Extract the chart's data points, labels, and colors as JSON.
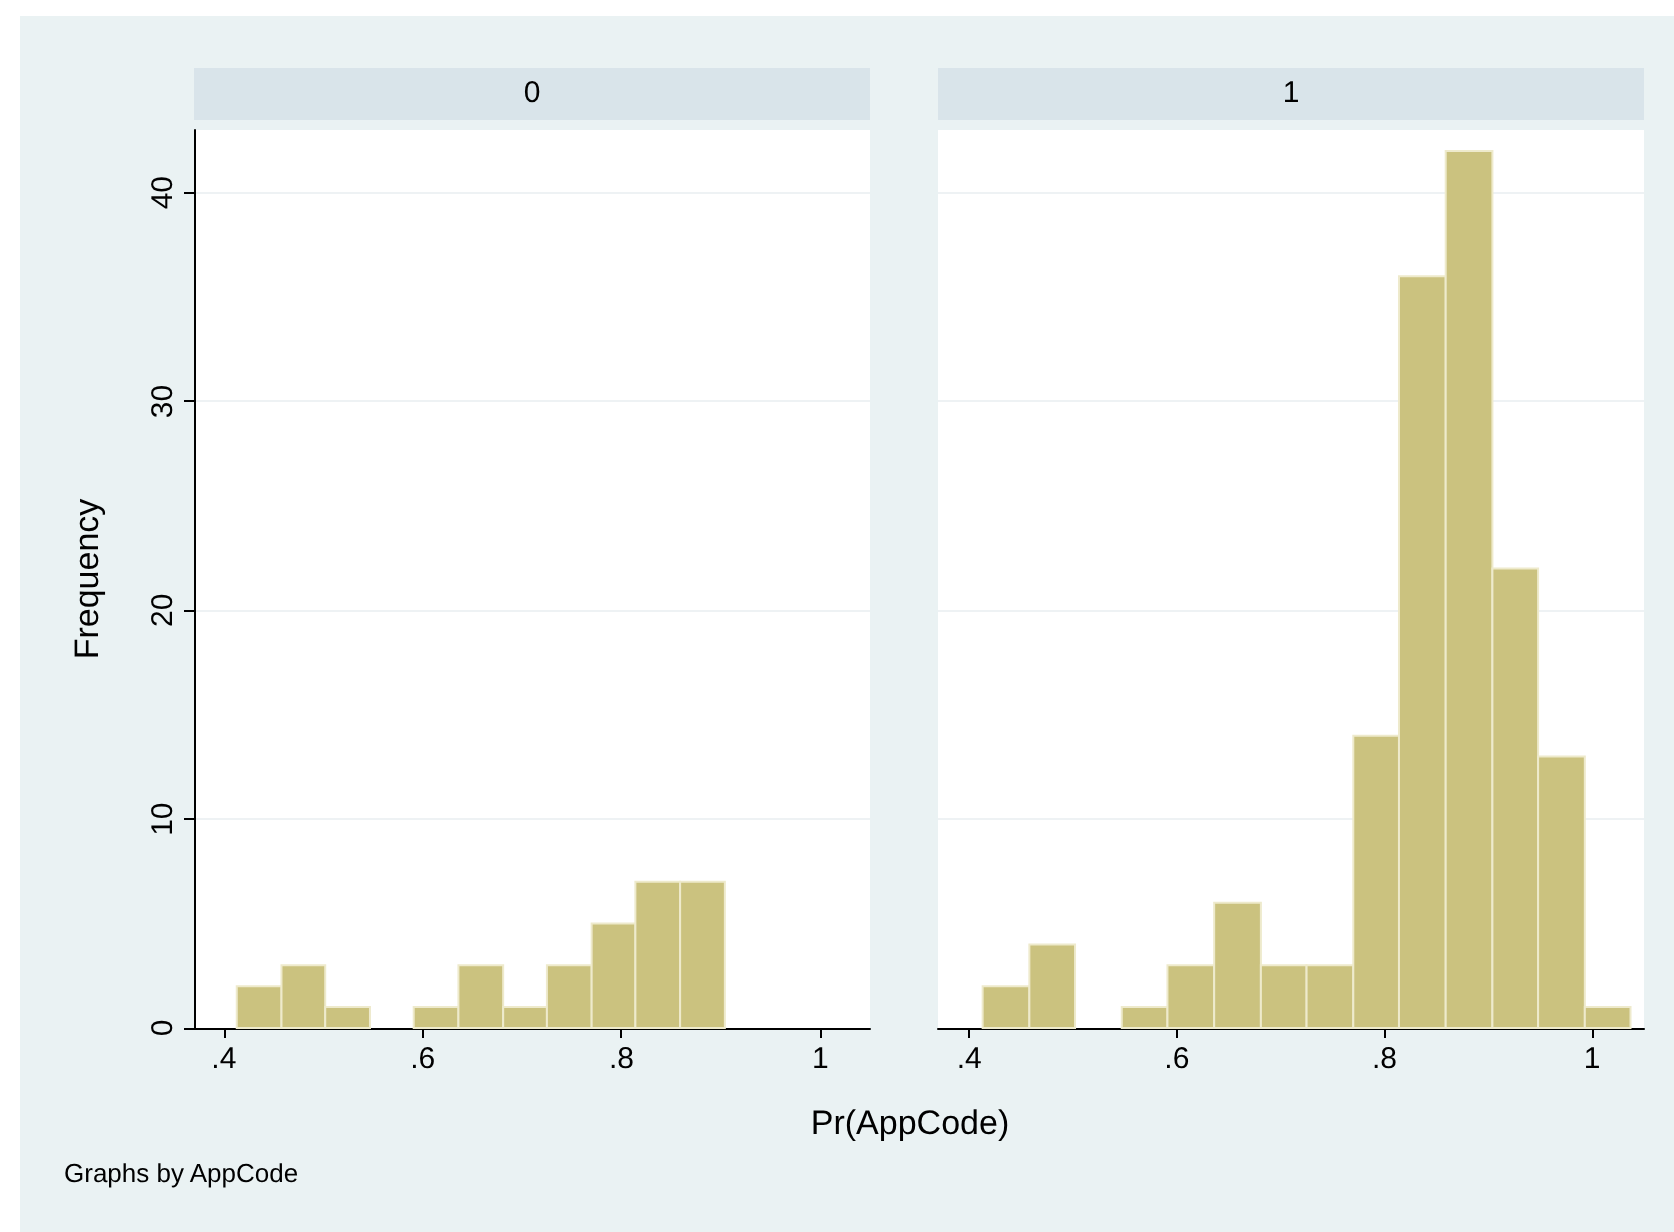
{
  "chart_data": [
    {
      "type": "histogram",
      "title": "0",
      "ylabel": "Frequency",
      "annotations": [
        "Graphs by AppCode"
      ],
      "bins": [
        0.413,
        0.458,
        0.502,
        0.547,
        0.591,
        0.636,
        0.681,
        0.725,
        0.77,
        0.814,
        0.859,
        0.904
      ],
      "values": [
        2,
        3,
        1,
        0,
        1,
        3,
        1,
        3,
        5,
        7,
        7
      ],
      "color": "#cbc27f",
      "xlim": [
        0.37,
        1.05
      ],
      "xticks": [
        {
          "value": 0.4,
          "label": ".4"
        },
        {
          "value": 0.6,
          "label": ".6"
        },
        {
          "value": 0.8,
          "label": ".8"
        },
        1
      ],
      "ylim": [
        0,
        43
      ],
      "yticks": [
        0,
        10,
        20,
        30,
        40
      ],
      "grid": "y"
    },
    {
      "type": "histogram",
      "title": "1",
      "xlabel": "Pr(AppCode)",
      "bins": [
        0.413,
        0.458,
        0.502,
        0.547,
        0.591,
        0.636,
        0.681,
        0.725,
        0.77,
        0.814,
        0.859,
        0.904,
        0.948,
        0.993,
        1.037
      ],
      "values": [
        2,
        4,
        0,
        1,
        3,
        6,
        3,
        3,
        14,
        36,
        42,
        22,
        13,
        1
      ],
      "color": "#cbc27f",
      "xlim": [
        0.37,
        1.05
      ],
      "xticks": [
        {
          "value": 0.4,
          "label": ".4"
        },
        {
          "value": 0.6,
          "label": ".6"
        },
        {
          "value": 0.8,
          "label": ".8"
        },
        1
      ],
      "ylim": [
        0,
        43
      ],
      "yticks": [
        0,
        10,
        20,
        30,
        40
      ],
      "grid": "y",
      "tick_labels": "x"
    }
  ]
}
